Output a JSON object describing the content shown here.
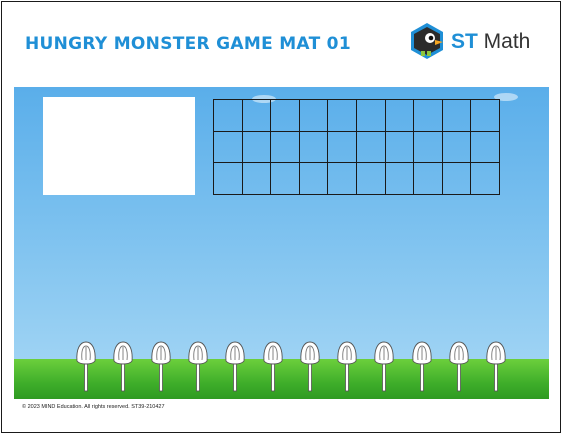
{
  "header": {
    "title": "HUNGRY MONSTER GAME MAT 01",
    "logo_text_bold": "ST",
    "logo_text": " Math"
  },
  "grid": {
    "rows": 3,
    "cols": 10
  },
  "flowers": {
    "count": 12
  },
  "footer": {
    "copyright": "© 2023 MIND Education.  All rights reserved. ST39-210427"
  },
  "colors": {
    "title": "#1f8fd6",
    "sky_top": "#5aaeea",
    "sky_bottom": "#a8d8f5",
    "grass": "#3fae2a"
  },
  "icons": [
    "penguin-logo-icon",
    "flower-icon"
  ]
}
